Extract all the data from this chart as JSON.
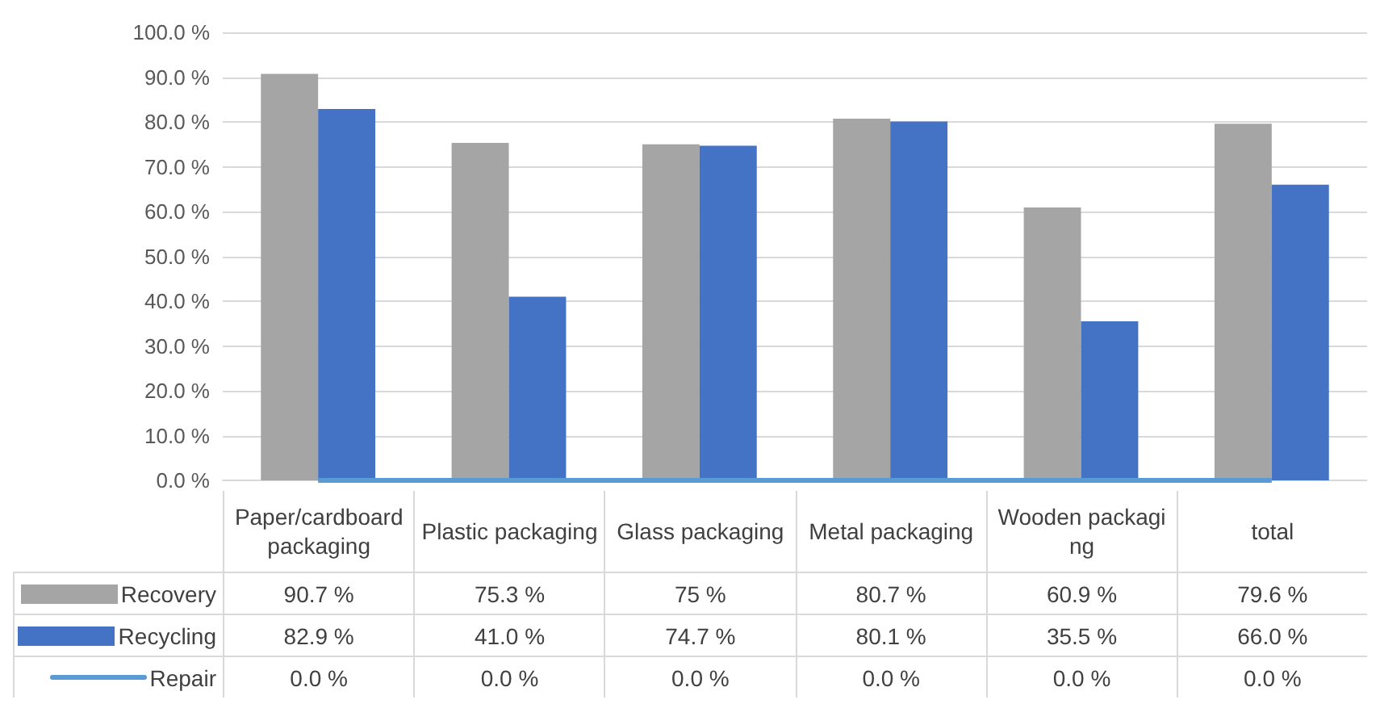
{
  "chart_data": {
    "type": "bar",
    "categories": [
      "Paper/cardboard packaging",
      "Plastic packaging",
      "Glass packaging",
      "Metal packaging",
      "Wooden packaging",
      "total"
    ],
    "series": [
      {
        "name": "Recovery",
        "color": "#a5a5a5",
        "values": [
          90.7,
          75.3,
          75,
          80.7,
          60.9,
          79.6
        ],
        "value_labels": [
          "90.7 %",
          "75.3 %",
          "75 %",
          "80.7 %",
          "60.9 %",
          "79.6 %"
        ]
      },
      {
        "name": "Recycling",
        "color": "#4472c4",
        "values": [
          82.9,
          41.0,
          74.7,
          80.1,
          35.5,
          66.0
        ],
        "value_labels": [
          "82.9 %",
          "41.0 %",
          "74.7 %",
          "80.1 %",
          "35.5 %",
          "66.0 %"
        ]
      },
      {
        "name": "Repair",
        "type": "line",
        "color": "#5b9bd5",
        "values": [
          0,
          0,
          0,
          0,
          0,
          0
        ],
        "value_labels": [
          "0.0 %",
          "0.0 %",
          "0.0 %",
          "0.0 %",
          "0.0 %",
          "0.0 %"
        ]
      }
    ],
    "ylim": [
      0,
      100
    ],
    "yticks": [
      {
        "value": 0,
        "label": "0.0 %"
      },
      {
        "value": 10,
        "label": "10.0 %"
      },
      {
        "value": 20,
        "label": "20.0 %"
      },
      {
        "value": 30,
        "label": "30.0 %"
      },
      {
        "value": 40,
        "label": "40.0 %"
      },
      {
        "value": 50,
        "label": "50.0 %"
      },
      {
        "value": 60,
        "label": "60.0 %"
      },
      {
        "value": 70,
        "label": "70.0 %"
      },
      {
        "value": 80,
        "label": "80.0 %"
      },
      {
        "value": 90,
        "label": "90.0 %"
      },
      {
        "value": 100,
        "label": "100.0 %"
      }
    ],
    "grid": "y",
    "legend": "bottom",
    "marker": "none"
  }
}
